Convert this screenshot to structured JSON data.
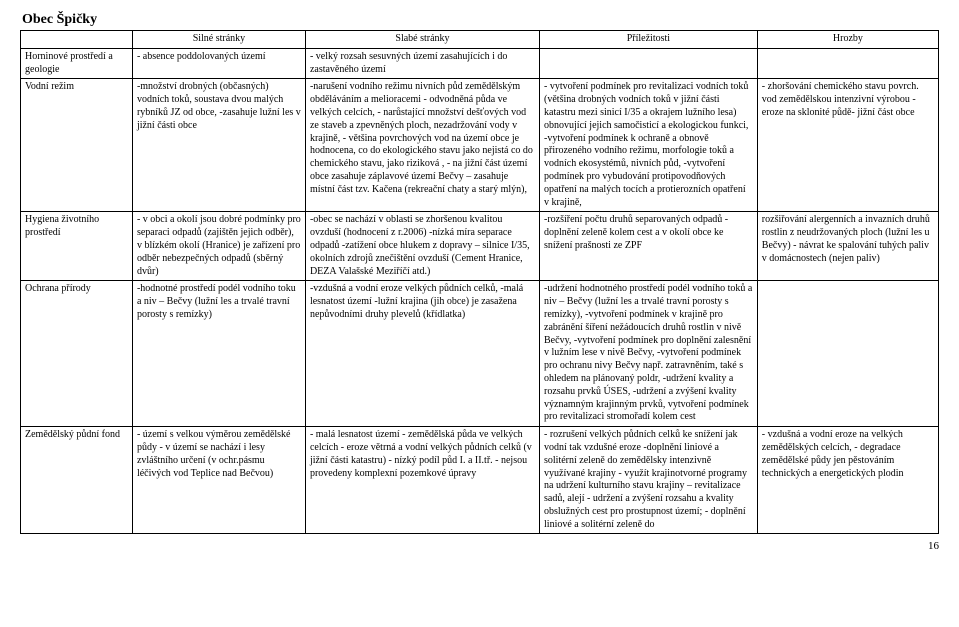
{
  "title": "Obec Špičky",
  "pageNumber": "16",
  "headers": {
    "aspect": "",
    "strong": "Silné stránky",
    "weak": "Slabé stránky",
    "opp": "Příležitosti",
    "threat": "Hrozby"
  },
  "rows": [
    {
      "aspect": "Horninové prostředí a geologie",
      "strong": "- absence poddolovaných  území",
      "weak": "- velký rozsah sesuvných území zasahujících i do zastavěného území",
      "opp": "",
      "threat": ""
    },
    {
      "aspect": "Vodní režim",
      "strong": "-množství drobných (občasných) vodních toků, soustava  dvou malých rybníků JZ od obce,\n-zasahuje lužní les v jižní části obce",
      "weak": "-narušení vodního režimu nivních půd zemědělským obděláváním a melioracemi\n- odvodněná půda ve velkých celcích,\n- narůstající množství dešťových vod ze staveb a zpevněných ploch, nezadržování vody v krajině,\n- většina povrchových vod na území obce je hodnocena, co do ekologického stavu jako nejistá co do chemického stavu, jako riziková ,\n- na jižní část území obce zasahuje záplavové území Bečvy – zasahuje místní část tzv. Kačena (rekreační chaty a starý mlýn),",
      "opp": "- vytvoření podmínek pro revitalizaci vodních toků (většina drobných vodních toků v jižní části katastru mezi sinicí I/35 a okrajem lužního lesa) obnovující jejich samočisticí a ekologickou funkci,\n-vytvoření podmínek k ochraně a obnově přirozeného vodního režimu, morfologie toků a vodních ekosystémů, nivních půd,\n-vytvoření podmínek pro vybudování protipovodňových opatření na malých tocích a protierozních opatření v krajině,",
      "threat": "- zhoršování chemického stavu povrch. vod zemědělskou intenzivní výrobou\n- eroze na sklonité půdě- jižní část obce"
    },
    {
      "aspect": "Hygiena životního prostředí",
      "strong": "- v obci a okolí jsou dobré podmínky pro separaci odpadů (zajištěn jejich odběr), v blízkém okolí (Hranice) je zařízení pro odběr nebezpečných odpadů (sběrný dvůr)",
      "weak": "-obec se nachází v oblasti se zhoršenou kvalitou ovzduší (hodnocení z r.2006)\n-nízká míra separace odpadů\n-zatížení obce hlukem z dopravy – silnice I/35, okolních zdrojů znečištění ovzduší (Cement Hranice, DEZA Valašské Meziříčí atd.)",
      "opp": "-rozšíření počtu druhů separovaných odpadů\n-doplnění zeleně kolem cest a v okolí obce ke snížení prašnosti ze ZPF",
      "threat": "rozšiřování alergenních a invazních druhů rostlin z neudržovaných ploch (lužní les u Bečvy)\n- návrat ke spalování tuhých paliv v domácnostech (nejen paliv)"
    },
    {
      "aspect": "Ochrana přírody",
      "strong": "-hodnotné prostředí podél vodního toku a niv – Bečvy (lužní les a trvalé travní porosty s remízky)",
      "weak": "-vzdušná a vodní eroze velkých půdních celků,\n-malá lesnatost území\n-lužní krajina (jih obce) je zasažena nepůvodními druhy plevelů (křídlatka)",
      "opp": "-udržení hodnotného prostředí podél vodního toků a niv – Bečvy (lužní les a trvalé travní porosty s remízky),\n-vytvoření podmínek v krajině pro zabránění šíření nežádoucích druhů rostlin v nivě Bečvy,\n-vytvoření podmínek pro doplnění zalesnění v lužním lese v nivě Bečvy,\n-vytvoření podmínek pro ochranu nivy Bečvy např. zatravněním, také s ohledem na plánovaný poldr,\n-udržení kvality a rozsahu prvků ÚSES,\n-udržení a zvýšení kvality významným krajinným prvků,\nvytvoření podmínek pro revitalizaci stromořadí kolem cest",
      "threat": ""
    },
    {
      "aspect": "Zemědělský půdní fond",
      "strong": "- území s velkou výměrou zemědělské půdy\n- v území se nachází i lesy zvláštního určení (v ochr.pásmu léčivých vod Teplice nad Bečvou)",
      "weak": "- malá lesnatost území\n- zemědělská půda ve velkých celcích\n- eroze větrná a vodní velkých půdních celků (v jižní části katastru)\n- nízký podíl půd I. a II.tř.\n- nejsou provedeny komplexní pozemkové úpravy",
      "opp": "- rozrušení velkých půdních celků ke snížení jak vodní tak vzdušné eroze\n-doplnění liniové a solitérní zeleně do zemědělsky intenzivně využívané krajiny\n- využít krajinotvorné programy na udržení kulturního stavu krajiny – revitalizace sadů, alejí\n- udržení a zvýšení rozsahu a kvality obslužných cest pro prostupnost území;\n- doplnění liniové a solitérní zeleně do",
      "threat": "- vzdušná a vodní eroze na velkých zemědělských celcích,\n- degradace zemědělské půdy jen pěstováním technických  a energetických plodin"
    }
  ]
}
